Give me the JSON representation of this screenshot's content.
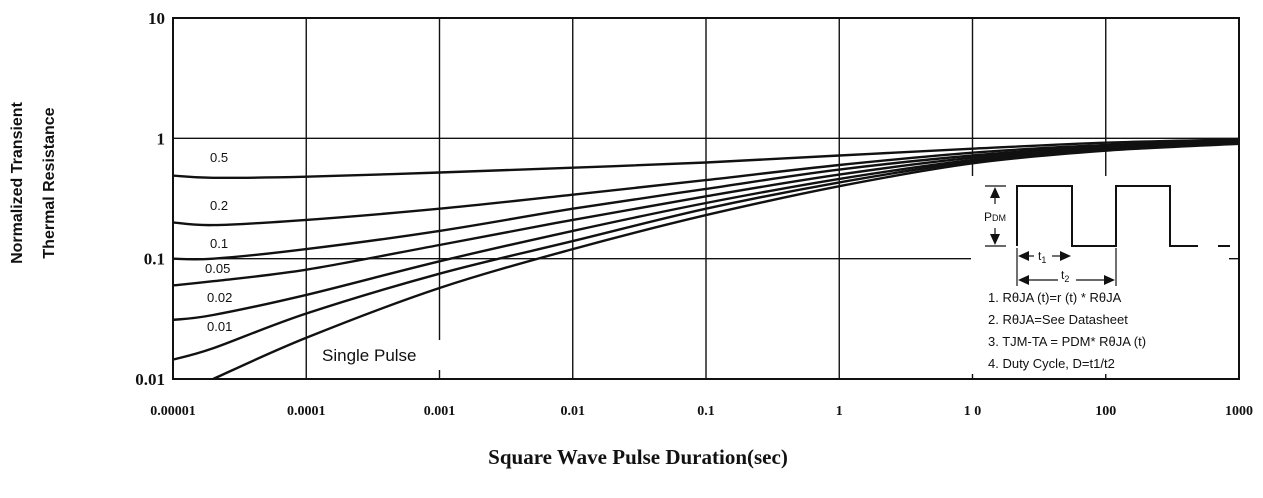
{
  "chart_data": {
    "type": "line",
    "title": "",
    "xlabel": "Square Wave Pulse Duration(sec)",
    "ylabel_lines": [
      "Normalized Transient",
      "Thermal Resistance"
    ],
    "x_scale": "log",
    "y_scale": "log",
    "xlim": [
      1e-05,
      1000
    ],
    "ylim": [
      0.01,
      10
    ],
    "x_tick_labels": [
      "0.00001",
      "0.0001",
      "0.001",
      "0.01",
      "0.1",
      "1",
      "1 0",
      "100",
      "1000"
    ],
    "x_tick_values": [
      1e-05,
      0.0001,
      0.001,
      0.01,
      0.1,
      1,
      10,
      100,
      1000
    ],
    "y_tick_labels": [
      "0.01",
      "0.1",
      "1",
      "10"
    ],
    "y_tick_values": [
      0.01,
      0.1,
      1,
      10
    ],
    "grid": true,
    "series": [
      {
        "name": "0.5",
        "x": [
          1e-05,
          2e-05,
          0.0001,
          0.001,
          0.01,
          0.1,
          1,
          10,
          100,
          1000
        ],
        "y": [
          0.49,
          0.47,
          0.48,
          0.52,
          0.57,
          0.63,
          0.72,
          0.82,
          0.92,
          0.98
        ]
      },
      {
        "name": "0.2",
        "x": [
          1e-05,
          2e-05,
          0.0001,
          0.001,
          0.01,
          0.1,
          1,
          10,
          100,
          1000
        ],
        "y": [
          0.2,
          0.19,
          0.21,
          0.26,
          0.34,
          0.45,
          0.6,
          0.76,
          0.88,
          0.95
        ]
      },
      {
        "name": "0.1",
        "x": [
          1e-05,
          2e-05,
          0.0001,
          0.001,
          0.01,
          0.1,
          1,
          10,
          100,
          1000
        ],
        "y": [
          0.1,
          0.1,
          0.12,
          0.17,
          0.26,
          0.38,
          0.55,
          0.72,
          0.86,
          0.94
        ]
      },
      {
        "name": "0.05",
        "x": [
          1e-05,
          2e-05,
          0.0001,
          0.001,
          0.01,
          0.1,
          1,
          10,
          100,
          1000
        ],
        "y": [
          0.06,
          0.065,
          0.081,
          0.13,
          0.21,
          0.33,
          0.5,
          0.69,
          0.84,
          0.93
        ]
      },
      {
        "name": "0.02",
        "x": [
          1e-05,
          2e-05,
          0.0001,
          0.001,
          0.01,
          0.1,
          1,
          10,
          100,
          1000
        ],
        "y": [
          0.031,
          0.034,
          0.05,
          0.095,
          0.17,
          0.29,
          0.46,
          0.66,
          0.82,
          0.92
        ]
      },
      {
        "name": "0.01",
        "x": [
          1e-05,
          2e-05,
          0.0001,
          0.001,
          0.01,
          0.1,
          1,
          10,
          100,
          1000
        ],
        "y": [
          0.0145,
          0.018,
          0.035,
          0.075,
          0.14,
          0.26,
          0.43,
          0.64,
          0.8,
          0.91
        ]
      },
      {
        "name": "Single Pulse",
        "x": [
          2e-05,
          0.0001,
          0.001,
          0.01,
          0.1,
          1,
          10,
          100,
          1000
        ],
        "y": [
          0.01,
          0.022,
          0.057,
          0.12,
          0.23,
          0.4,
          0.62,
          0.79,
          0.9
        ]
      }
    ],
    "curve_labels": [
      "0.5",
      "0.2",
      "0.1",
      "0.05",
      "0.02",
      "0.01"
    ],
    "annotation": "Single Pulse",
    "inset": {
      "pdm_main": "P",
      "pdm_sub": "DM",
      "t1_main": "t",
      "t1_sub": "1",
      "t2_main": "t",
      "t2_sub": "2",
      "notes": [
        "1. RθJA (t)=r (t) * RθJA",
        "2. RθJA=See Datasheet",
        "3. TJM-TA = PDM* RθJA (t)",
        "4. Duty Cycle, D=t1/t2"
      ]
    }
  }
}
